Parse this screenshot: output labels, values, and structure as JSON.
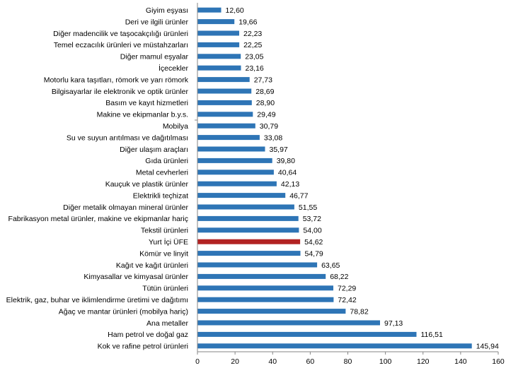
{
  "chart_data": {
    "type": "bar",
    "orientation": "horizontal",
    "title": "",
    "xlabel": "",
    "ylabel": "",
    "xlim": [
      0,
      160
    ],
    "x_ticks": [
      0,
      20,
      40,
      60,
      80,
      100,
      120,
      140,
      160
    ],
    "grid": false,
    "legend": "none",
    "colors": {
      "default": "#2E75B6",
      "highlight": "#B22222"
    },
    "highlight_category": "Yurt İçi ÜFE",
    "categories": [
      "Giyim eşyası",
      "Deri ve ilgili ürünler",
      "Diğer madencilik ve taşocakçılığı ürünleri",
      "Temel eczacılık ürünleri ve müstahzarları",
      "Diğer mamul eşyalar",
      "İçecekler",
      "Motorlu kara taşıtları, römork ve yarı römork",
      "Bilgisayarlar ile elektronik ve optik ürünler",
      "Basım ve kayıt hizmetleri",
      "Makine ve ekipmanlar b.y.s.",
      "Mobilya",
      "Su ve suyun arıtılması ve dağıtılması",
      "Diğer ulaşım araçları",
      "Gıda ürünleri",
      "Metal cevherleri",
      "Kauçuk ve plastik ürünler",
      "Elektrikli teçhizat",
      "Diğer metalik olmayan mineral ürünler",
      "Fabrikasyon metal ürünler, makine ve ekipmanlar hariç",
      "Tekstil ürünleri",
      "Yurt İçi ÜFE",
      "Kömür ve linyit",
      "Kağıt ve kağıt ürünleri",
      "Kimyasallar ve kimyasal ürünler",
      "Tütün ürünleri",
      "Elektrik, gaz, buhar ve iklimlendirme üretimi ve dağıtımı",
      "Ağaç ve mantar ürünleri (mobilya hariç)",
      "Ana metaller",
      "Ham petrol ve doğal gaz",
      "Kok ve rafine petrol ürünleri"
    ],
    "values": [
      12.6,
      19.66,
      22.23,
      22.25,
      23.05,
      23.16,
      27.73,
      28.69,
      28.9,
      29.49,
      30.79,
      33.08,
      35.97,
      39.8,
      40.64,
      42.13,
      46.77,
      51.55,
      53.72,
      54.0,
      54.62,
      54.79,
      63.65,
      68.22,
      72.29,
      72.42,
      78.82,
      97.13,
      116.51,
      145.94
    ],
    "value_labels": [
      "12,60",
      "19,66",
      "22,23",
      "22,25",
      "23,05",
      "23,16",
      "27,73",
      "28,69",
      "28,90",
      "29,49",
      "30,79",
      "33,08",
      "35,97",
      "39,80",
      "40,64",
      "42,13",
      "46,77",
      "51,55",
      "53,72",
      "54,00",
      "54,62",
      "54,79",
      "63,65",
      "68,22",
      "72,29",
      "72,42",
      "78,82",
      "97,13",
      "116,51",
      "145,94"
    ]
  }
}
